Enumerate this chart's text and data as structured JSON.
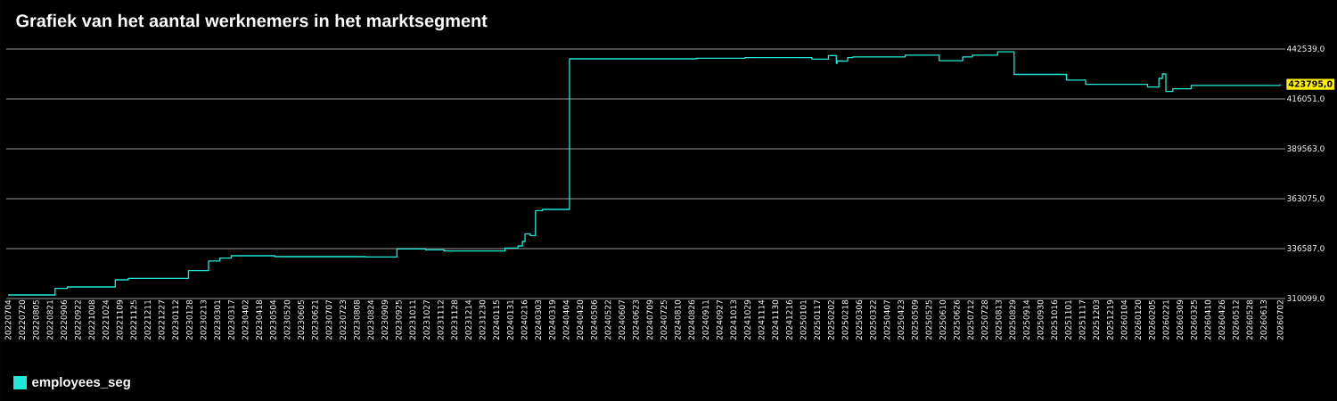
{
  "chart_data": {
    "type": "step",
    "title": "Grafiek van het aantal werknemers in het marktsegment",
    "x": [
      "2022-07-04",
      "2022-08-27",
      "2022-09-10",
      "2022-11-04",
      "2022-11-19",
      "2023-01-27",
      "2023-02-19",
      "2023-03-04",
      "2023-03-17",
      "2023-05-06",
      "2023-08-18",
      "2023-09-23",
      "2023-10-26",
      "2023-11-16",
      "2024-01-25",
      "2024-02-09",
      "2024-02-14",
      "2024-02-17",
      "2024-02-23",
      "2024-02-29",
      "2024-03-08",
      "2024-04-08",
      "2024-08-31",
      "2024-10-26",
      "2025-01-11",
      "2025-01-30",
      "2025-02-08",
      "2025-02-09",
      "2025-02-16",
      "2025-02-21",
      "2025-02-27",
      "2025-04-28",
      "2025-06-06",
      "2025-07-03",
      "2025-07-14",
      "2025-08-12",
      "2025-08-31",
      "2025-10-30",
      "2025-11-21",
      "2026-01-31",
      "2026-02-13",
      "2026-02-17",
      "2026-02-21",
      "2026-03-01",
      "2026-03-22",
      "2026-07-02"
    ],
    "series": [
      {
        "name": "employees_seg",
        "color": "#20e8d8",
        "values": [
          311990,
          315440,
          316250,
          320030,
          320830,
          324900,
          329970,
          331530,
          332800,
          332330,
          332190,
          336440,
          335970,
          335310,
          336920,
          338010,
          340370,
          344490,
          343540,
          356780,
          357400,
          437340,
          437670,
          437980,
          437190,
          439080,
          434970,
          436150,
          436050,
          438000,
          438380,
          439270,
          436340,
          438380,
          439270,
          441070,
          429060,
          425990,
          423810,
          422350,
          426930,
          429300,
          419970,
          421440,
          423230,
          423795
        ]
      }
    ],
    "xlim": [
      "2022-07-02",
      "2026-07-08"
    ],
    "ylim": [
      310099,
      442539
    ],
    "yticks": [
      {
        "value": 310099,
        "label": "310099,0"
      },
      {
        "value": 336587,
        "label": "336587,0"
      },
      {
        "value": 363075,
        "label": "363075,0"
      },
      {
        "value": 389563,
        "label": "389563,0"
      },
      {
        "value": 416051,
        "label": "416051,0"
      },
      {
        "value": 442539,
        "label": "442539,0"
      }
    ],
    "xticks": [
      {
        "value": "2022-07-04",
        "label": "20220704"
      },
      {
        "value": "2022-07-20",
        "label": "20220720"
      },
      {
        "value": "2022-08-05",
        "label": "20220805"
      },
      {
        "value": "2022-08-21",
        "label": "20220821"
      },
      {
        "value": "2022-09-06",
        "label": "20220906"
      },
      {
        "value": "2022-09-22",
        "label": "20220922"
      },
      {
        "value": "2022-10-08",
        "label": "20221008"
      },
      {
        "value": "2022-10-24",
        "label": "20221024"
      },
      {
        "value": "2022-11-09",
        "label": "20221109"
      },
      {
        "value": "2022-11-25",
        "label": "20221125"
      },
      {
        "value": "2022-12-11",
        "label": "20221211"
      },
      {
        "value": "2022-12-27",
        "label": "20221227"
      },
      {
        "value": "2023-01-12",
        "label": "20230112"
      },
      {
        "value": "2023-01-28",
        "label": "20230128"
      },
      {
        "value": "2023-02-13",
        "label": "20230213"
      },
      {
        "value": "2023-03-01",
        "label": "20230301"
      },
      {
        "value": "2023-03-17",
        "label": "20230317"
      },
      {
        "value": "2023-04-02",
        "label": "20230402"
      },
      {
        "value": "2023-04-18",
        "label": "20230418"
      },
      {
        "value": "2023-05-04",
        "label": "20230504"
      },
      {
        "value": "2023-05-20",
        "label": "20230520"
      },
      {
        "value": "2023-06-05",
        "label": "20230605"
      },
      {
        "value": "2023-06-21",
        "label": "20230621"
      },
      {
        "value": "2023-07-07",
        "label": "20230707"
      },
      {
        "value": "2023-07-23",
        "label": "20230723"
      },
      {
        "value": "2023-08-08",
        "label": "20230808"
      },
      {
        "value": "2023-08-24",
        "label": "20230824"
      },
      {
        "value": "2023-09-09",
        "label": "20230909"
      },
      {
        "value": "2023-09-25",
        "label": "20230925"
      },
      {
        "value": "2023-10-11",
        "label": "20231011"
      },
      {
        "value": "2023-10-27",
        "label": "20231027"
      },
      {
        "value": "2023-11-12",
        "label": "20231112"
      },
      {
        "value": "2023-11-28",
        "label": "20231128"
      },
      {
        "value": "2023-12-14",
        "label": "20231214"
      },
      {
        "value": "2023-12-30",
        "label": "20231230"
      },
      {
        "value": "2024-01-15",
        "label": "20240115"
      },
      {
        "value": "2024-01-31",
        "label": "20240131"
      },
      {
        "value": "2024-02-16",
        "label": "20240216"
      },
      {
        "value": "2024-03-03",
        "label": "20240303"
      },
      {
        "value": "2024-03-19",
        "label": "20240319"
      },
      {
        "value": "2024-04-04",
        "label": "20240404"
      },
      {
        "value": "2024-04-20",
        "label": "20240420"
      },
      {
        "value": "2024-05-06",
        "label": "20240506"
      },
      {
        "value": "2024-05-22",
        "label": "20240522"
      },
      {
        "value": "2024-06-07",
        "label": "20240607"
      },
      {
        "value": "2024-06-23",
        "label": "20240623"
      },
      {
        "value": "2024-07-09",
        "label": "20240709"
      },
      {
        "value": "2024-07-25",
        "label": "20240725"
      },
      {
        "value": "2024-08-10",
        "label": "20240810"
      },
      {
        "value": "2024-08-26",
        "label": "20240826"
      },
      {
        "value": "2024-09-11",
        "label": "20240911"
      },
      {
        "value": "2024-09-27",
        "label": "20240927"
      },
      {
        "value": "2024-10-13",
        "label": "20241013"
      },
      {
        "value": "2024-10-29",
        "label": "20241029"
      },
      {
        "value": "2024-11-14",
        "label": "20241114"
      },
      {
        "value": "2024-11-30",
        "label": "20241130"
      },
      {
        "value": "2024-12-16",
        "label": "20241216"
      },
      {
        "value": "2025-01-01",
        "label": "20250101"
      },
      {
        "value": "2025-01-17",
        "label": "20250117"
      },
      {
        "value": "2025-02-02",
        "label": "20250202"
      },
      {
        "value": "2025-02-18",
        "label": "20250218"
      },
      {
        "value": "2025-03-06",
        "label": "20250306"
      },
      {
        "value": "2025-03-22",
        "label": "20250322"
      },
      {
        "value": "2025-04-07",
        "label": "20250407"
      },
      {
        "value": "2025-04-23",
        "label": "20250423"
      },
      {
        "value": "2025-05-09",
        "label": "20250509"
      },
      {
        "value": "2025-05-25",
        "label": "20250525"
      },
      {
        "value": "2025-06-10",
        "label": "20250610"
      },
      {
        "value": "2025-06-26",
        "label": "20250626"
      },
      {
        "value": "2025-07-12",
        "label": "20250712"
      },
      {
        "value": "2025-07-28",
        "label": "20250728"
      },
      {
        "value": "2025-08-13",
        "label": "20250813"
      },
      {
        "value": "2025-08-29",
        "label": "20250829"
      },
      {
        "value": "2025-09-14",
        "label": "20250914"
      },
      {
        "value": "2025-09-30",
        "label": "20250930"
      },
      {
        "value": "2025-10-16",
        "label": "20251016"
      },
      {
        "value": "2025-11-01",
        "label": "20251101"
      },
      {
        "value": "2025-11-17",
        "label": "20251117"
      },
      {
        "value": "2025-12-03",
        "label": "20251203"
      },
      {
        "value": "2025-12-19",
        "label": "20251219"
      },
      {
        "value": "2026-01-04",
        "label": "20260104"
      },
      {
        "value": "2026-01-20",
        "label": "20260120"
      },
      {
        "value": "2026-02-05",
        "label": "20260205"
      },
      {
        "value": "2026-02-21",
        "label": "20260221"
      },
      {
        "value": "2026-03-09",
        "label": "20260309"
      },
      {
        "value": "2026-03-25",
        "label": "20260325"
      },
      {
        "value": "2026-04-10",
        "label": "20260410"
      },
      {
        "value": "2026-04-26",
        "label": "20260426"
      },
      {
        "value": "2026-05-12",
        "label": "20260512"
      },
      {
        "value": "2026-05-28",
        "label": "20260528"
      },
      {
        "value": "2026-06-13",
        "label": "20260613"
      },
      {
        "value": "2026-07-02",
        "label": "20260702"
      }
    ],
    "annotations": [
      {
        "text": "423795,0",
        "x": "2026-07-02",
        "y": 423795
      }
    ],
    "grid": "y",
    "legend": "bottom",
    "marker": "none"
  }
}
